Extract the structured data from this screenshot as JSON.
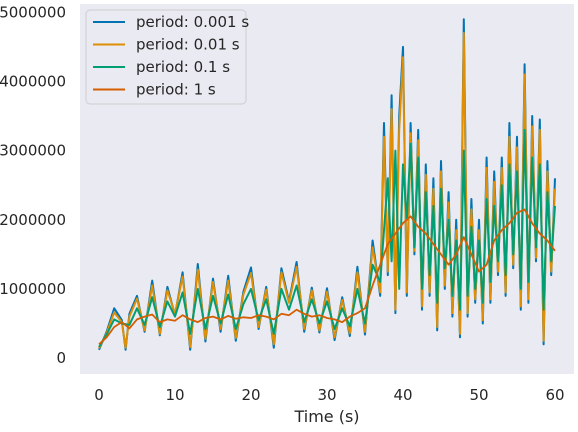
{
  "chart_data": {
    "type": "line",
    "title": "",
    "xlabel": "Time (s)",
    "ylabel": "",
    "xlim": [
      -2.5,
      62.5
    ],
    "ylim": [
      -230000,
      5120000
    ],
    "grid": false,
    "legend_position": "top-left",
    "x_ticks": [
      0,
      10,
      20,
      30,
      40,
      50,
      60
    ],
    "y_ticks": [
      0,
      1000000,
      2000000,
      3000000,
      4000000,
      5000000
    ],
    "x_tick_labels": [
      "0",
      "10",
      "20",
      "30",
      "40",
      "50",
      "60"
    ],
    "y_tick_labels": [
      "0",
      "1000000",
      "2000000",
      "3000000",
      "4000000",
      "5000000"
    ],
    "colors": {
      "background": "#eaeaf2",
      "period_0_001": "#0173b2",
      "period_0_01": "#de8f05",
      "period_0_1": "#029e73",
      "period_1": "#d55e00"
    },
    "series": [
      {
        "name": "period: 0.001 s",
        "color": "#0173b2",
        "x": [
          0,
          1,
          2,
          3,
          3.5,
          4,
          5,
          6,
          7,
          8,
          9,
          10,
          11,
          12,
          13,
          14,
          15,
          16,
          17,
          18,
          19,
          20,
          21,
          22,
          23,
          24,
          25,
          26,
          27,
          28,
          29,
          30,
          31,
          32,
          33,
          34,
          35,
          36,
          37,
          37.5,
          38,
          38.5,
          39,
          39.5,
          40,
          40.5,
          41,
          41.5,
          42,
          42.5,
          43,
          43.5,
          44,
          44.5,
          45,
          45.5,
          46,
          46.5,
          47,
          47.5,
          48,
          48.5,
          49,
          49.5,
          50,
          50.5,
          51,
          51.5,
          52,
          52.5,
          53,
          53.5,
          54,
          54.5,
          55,
          55.5,
          56,
          56.5,
          57,
          57.5,
          58,
          58.5,
          59,
          59.5,
          60
        ],
        "y": [
          120000,
          380000,
          720000,
          550000,
          120000,
          640000,
          900000,
          380000,
          1120000,
          330000,
          1030000,
          620000,
          1240000,
          120000,
          1360000,
          240000,
          1150000,
          380000,
          1190000,
          250000,
          960000,
          1310000,
          420000,
          1030000,
          150000,
          1300000,
          820000,
          1390000,
          380000,
          1020000,
          370000,
          1010000,
          260000,
          880000,
          320000,
          1320000,
          340000,
          1700000,
          900000,
          3400000,
          1200000,
          3800000,
          650000,
          3500000,
          4500000,
          900000,
          3400000,
          1500000,
          3300000,
          700000,
          2800000,
          900000,
          2600000,
          400000,
          2850000,
          1000000,
          2400000,
          600000,
          2000000,
          300000,
          4900000,
          600000,
          2300000,
          800000,
          2000000,
          500000,
          2900000,
          800000,
          2700000,
          1200000,
          2900000,
          900000,
          3400000,
          1300000,
          3200000,
          700000,
          4250000,
          800000,
          3500000,
          1400000,
          3450000,
          200000,
          2850000,
          1200000,
          2600000
        ]
      },
      {
        "name": "period: 0.01 s",
        "color": "#de8f05",
        "x": [
          0,
          1,
          2,
          3,
          3.5,
          4,
          5,
          6,
          7,
          8,
          9,
          10,
          11,
          12,
          13,
          14,
          15,
          16,
          17,
          18,
          19,
          20,
          21,
          22,
          23,
          24,
          25,
          26,
          27,
          28,
          29,
          30,
          31,
          32,
          33,
          34,
          35,
          36,
          37,
          37.5,
          38,
          38.5,
          39,
          39.5,
          40,
          40.5,
          41,
          41.5,
          42,
          42.5,
          43,
          43.5,
          44,
          44.5,
          45,
          45.5,
          46,
          46.5,
          47,
          47.5,
          48,
          48.5,
          49,
          49.5,
          50,
          50.5,
          51,
          51.5,
          52,
          52.5,
          53,
          53.5,
          54,
          54.5,
          55,
          55.5,
          56,
          56.5,
          57,
          57.5,
          58,
          58.5,
          59,
          59.5,
          60
        ],
        "y": [
          140000,
          360000,
          660000,
          520000,
          150000,
          600000,
          860000,
          400000,
          1050000,
          350000,
          980000,
          640000,
          1180000,
          160000,
          1280000,
          280000,
          1100000,
          420000,
          1120000,
          290000,
          920000,
          1230000,
          450000,
          990000,
          200000,
          1240000,
          800000,
          1320000,
          420000,
          980000,
          400000,
          960000,
          300000,
          840000,
          360000,
          1240000,
          380000,
          1600000,
          950000,
          3200000,
          1250000,
          3600000,
          700000,
          3300000,
          4350000,
          950000,
          3250000,
          1550000,
          3150000,
          750000,
          2650000,
          950000,
          2450000,
          450000,
          2700000,
          1050000,
          2250000,
          650000,
          1850000,
          350000,
          4700000,
          650000,
          2150000,
          850000,
          1850000,
          550000,
          2750000,
          850000,
          2550000,
          1250000,
          2750000,
          950000,
          3200000,
          1350000,
          3050000,
          750000,
          4100000,
          850000,
          3350000,
          1450000,
          3300000,
          250000,
          2700000,
          1250000,
          2450000
        ]
      },
      {
        "name": "period: 0.1 s",
        "color": "#029e73",
        "x": [
          0,
          1,
          2,
          3,
          4,
          5,
          6,
          7,
          8,
          9,
          10,
          11,
          12,
          13,
          14,
          15,
          16,
          17,
          18,
          19,
          20,
          21,
          22,
          23,
          24,
          25,
          26,
          27,
          28,
          29,
          30,
          31,
          32,
          33,
          34,
          35,
          36,
          37,
          38,
          38.5,
          39,
          39.5,
          40,
          40.5,
          41,
          41.5,
          42,
          42.5,
          43,
          43.5,
          44,
          44.5,
          45,
          45.5,
          46,
          46.5,
          47,
          47.5,
          48,
          48.5,
          49,
          49.5,
          50,
          50.5,
          51,
          51.5,
          52,
          52.5,
          53,
          53.5,
          54,
          54.5,
          55,
          55.5,
          56,
          56.5,
          57,
          57.5,
          58,
          58.5,
          59,
          59.5,
          60
        ],
        "y": [
          160000,
          340000,
          560000,
          500000,
          480000,
          720000,
          480000,
          880000,
          450000,
          820000,
          600000,
          950000,
          350000,
          1000000,
          420000,
          900000,
          500000,
          920000,
          420000,
          780000,
          1000000,
          550000,
          850000,
          350000,
          1000000,
          700000,
          1050000,
          520000,
          850000,
          500000,
          820000,
          420000,
          720000,
          460000,
          1000000,
          500000,
          1350000,
          1100000,
          2600000,
          1400000,
          3000000,
          1000000,
          2800000,
          2000000,
          3100000,
          1600000,
          2900000,
          1000000,
          2400000,
          1200000,
          2200000,
          800000,
          2450000,
          1300000,
          2000000,
          900000,
          1700000,
          700000,
          3000000,
          900000,
          1900000,
          1000000,
          1700000,
          800000,
          2300000,
          1100000,
          2200000,
          1400000,
          2500000,
          1200000,
          2800000,
          1500000,
          2700000,
          1000000,
          3300000,
          1100000,
          2900000,
          1600000,
          2800000,
          700000,
          2400000,
          1400000,
          2200000
        ]
      },
      {
        "name": "period: 1 s",
        "color": "#d55e00",
        "x": [
          0,
          1,
          2,
          3,
          4,
          5,
          6,
          7,
          8,
          9,
          10,
          11,
          12,
          13,
          14,
          15,
          16,
          17,
          18,
          19,
          20,
          21,
          22,
          23,
          24,
          25,
          26,
          27,
          28,
          29,
          30,
          31,
          32,
          33,
          34,
          35,
          36,
          37,
          38,
          39,
          40,
          41,
          42,
          43,
          44,
          45,
          46,
          47,
          48,
          49,
          50,
          51,
          52,
          53,
          54,
          55,
          56,
          57,
          58,
          59,
          60
        ],
        "y": [
          200000,
          300000,
          450000,
          520000,
          430000,
          560000,
          600000,
          630000,
          520000,
          560000,
          540000,
          620000,
          560000,
          520000,
          580000,
          600000,
          560000,
          610000,
          570000,
          590000,
          580000,
          620000,
          600000,
          560000,
          640000,
          620000,
          700000,
          640000,
          600000,
          620000,
          580000,
          560000,
          520000,
          600000,
          650000,
          720000,
          1050000,
          1350000,
          1650000,
          1800000,
          1950000,
          2050000,
          1900000,
          1800000,
          1650000,
          1500000,
          1350000,
          1500000,
          1750000,
          1500000,
          1250000,
          1350000,
          1700000,
          1850000,
          1950000,
          2100000,
          2150000,
          1950000,
          1800000,
          1700000,
          1550000
        ]
      }
    ]
  }
}
